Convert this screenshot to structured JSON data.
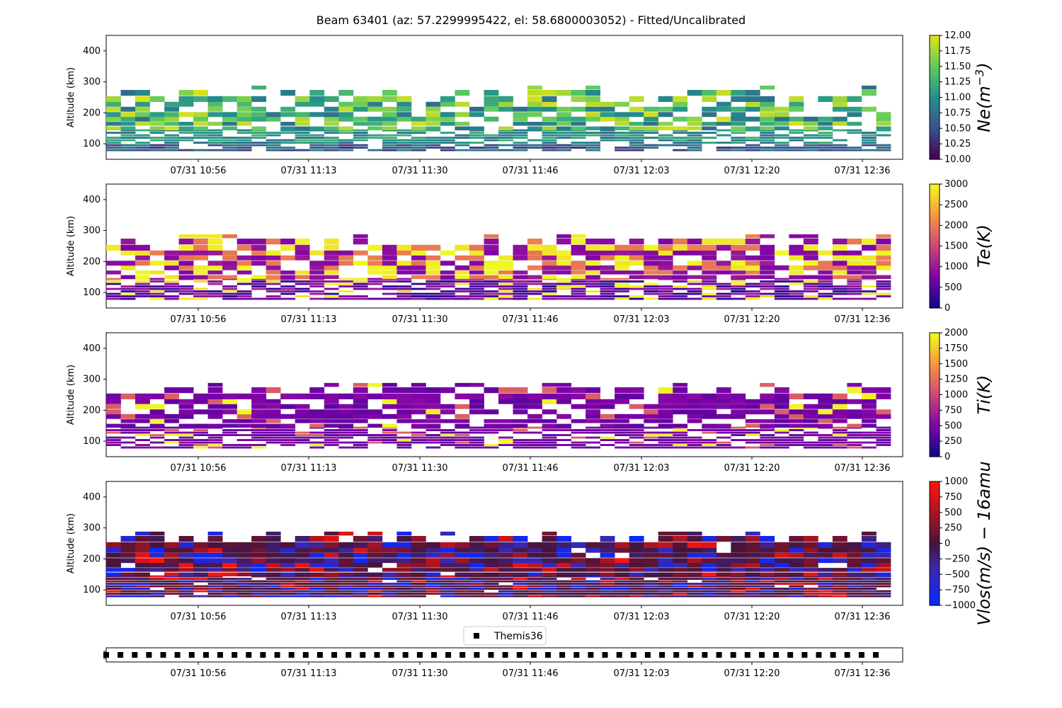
{
  "figure": {
    "title": "Beam 63401 (az: 57.2299995422, el: 58.6800003052) - Fitted/Uncalibrated"
  },
  "chart_data": [
    {
      "type": "heatmap",
      "id": "ne",
      "ylabel": "Altitude (km)",
      "ylim": [
        50,
        450
      ],
      "yticks": [
        100,
        200,
        300,
        400
      ],
      "xticks": [
        "07/31 10:56",
        "07/31 11:13",
        "07/31 11:30",
        "07/31 11:46",
        "07/31 12:03",
        "07/31 12:20",
        "07/31 12:36"
      ],
      "colorbar": {
        "label_tex": "Ne(m^-3)",
        "label_main": "Ne(m",
        "label_sup": "−3",
        "label_close": ")",
        "range": [
          10,
          12
        ],
        "ticks": [
          "10.00",
          "10.25",
          "10.50",
          "10.75",
          "11.00",
          "11.25",
          "11.50",
          "11.75",
          "12.00"
        ],
        "colormap": "viridis"
      },
      "approx_values": {
        "altitude_top_km": 290,
        "typical_value": 11.0
      }
    },
    {
      "type": "heatmap",
      "id": "te",
      "ylabel": "Altitude (km)",
      "ylim": [
        50,
        450
      ],
      "yticks": [
        100,
        200,
        300,
        400
      ],
      "xticks": [
        "07/31 10:56",
        "07/31 11:13",
        "07/31 11:30",
        "07/31 11:46",
        "07/31 12:03",
        "07/31 12:20",
        "07/31 12:36"
      ],
      "colorbar": {
        "label": "Te(K)",
        "range": [
          0,
          3000
        ],
        "ticks": [
          "0",
          "500",
          "1000",
          "1500",
          "2000",
          "2500",
          "3000"
        ],
        "colormap": "plasma"
      },
      "approx_values": {
        "altitude_top_km": 290,
        "typical_value": 900
      }
    },
    {
      "type": "heatmap",
      "id": "ti",
      "ylabel": "Altitude (km)",
      "ylim": [
        50,
        450
      ],
      "yticks": [
        100,
        200,
        300,
        400
      ],
      "xticks": [
        "07/31 10:56",
        "07/31 11:13",
        "07/31 11:30",
        "07/31 11:46",
        "07/31 12:03",
        "07/31 12:20",
        "07/31 12:36"
      ],
      "colorbar": {
        "label": "Ti(K)",
        "range": [
          0,
          2000
        ],
        "ticks": [
          "0",
          "250",
          "500",
          "750",
          "1000",
          "1250",
          "1500",
          "1750",
          "2000"
        ],
        "colormap": "plasma"
      },
      "approx_values": {
        "altitude_top_km": 290,
        "typical_value": 500
      }
    },
    {
      "type": "heatmap",
      "id": "vlos",
      "ylabel": "Altitude (km)",
      "ylim": [
        50,
        450
      ],
      "yticks": [
        100,
        200,
        300,
        400
      ],
      "xticks": [
        "07/31 10:56",
        "07/31 11:13",
        "07/31 11:30",
        "07/31 11:46",
        "07/31 12:03",
        "07/31 12:20",
        "07/31 12:36"
      ],
      "colorbar": {
        "label": "Vlos(m/s) − 16amu",
        "range": [
          -1000,
          1000
        ],
        "ticks": [
          "−1000",
          "−750",
          "−500",
          "−250",
          "0",
          "250",
          "500",
          "750",
          "1000"
        ],
        "colormap": "bwr-dark"
      },
      "approx_values": {
        "altitude_top_km": 290,
        "typical_value": 0
      }
    },
    {
      "type": "scatter",
      "id": "themis",
      "legend": {
        "label": "Themis36",
        "placement": "top-center"
      },
      "marker": "square",
      "xticks": [
        "07/31 10:56",
        "07/31 11:13",
        "07/31 11:30",
        "07/31 11:46",
        "07/31 12:03",
        "07/31 12:20",
        "07/31 12:36"
      ],
      "point_count": 55
    }
  ]
}
